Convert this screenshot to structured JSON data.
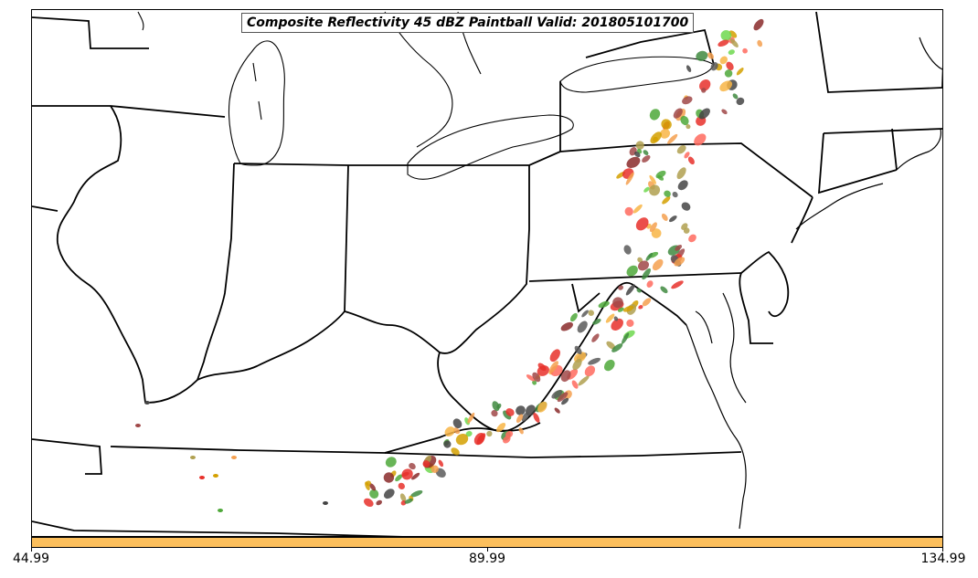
{
  "title": "Composite Reflectivity 45 dBZ Paintball Valid: 201805101700",
  "colorbar": {
    "color": "#fcbf5c",
    "ticks": [
      "44.99",
      "89.99",
      "134.99"
    ]
  },
  "colors": {
    "paintball": [
      "#e8302a",
      "#ff6a5e",
      "#f5a04f",
      "#f8b545",
      "#d4a000",
      "#6fd84f",
      "#4ea83a",
      "#8a2a2a",
      "#a04848",
      "#5a5a5a",
      "#444444",
      "#b0a050",
      "#3f8a3f"
    ]
  }
}
